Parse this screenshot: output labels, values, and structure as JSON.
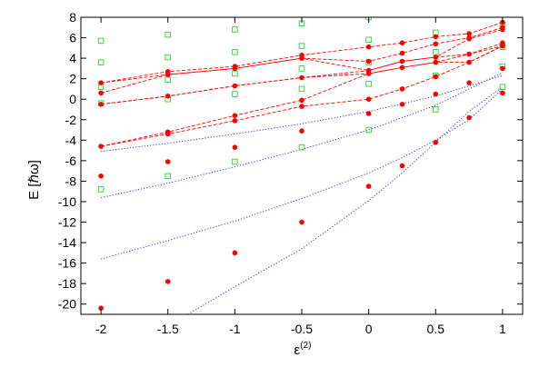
{
  "chart_data": {
    "type": "scatter",
    "xlabel": "ε",
    "xlabel_superscript": "(2)",
    "ylabel": "E [ℏω]",
    "xlim": [
      -2.15,
      1.15
    ],
    "ylim": [
      -21,
      8
    ],
    "xticks": [
      "-2",
      "-1.5",
      "-1",
      "-0.5",
      "0",
      "0.5",
      "1"
    ],
    "yticks": [
      "8",
      "6",
      "4",
      "2",
      "0",
      "-2",
      "-4",
      "-6",
      "-8",
      "-10",
      "-12",
      "-14",
      "-16",
      "-18",
      "-20"
    ],
    "grid": false,
    "legend": "none",
    "colors": {
      "red_points": "#ff0000",
      "green_squares": "#33cc33",
      "red_dashed": "#ff0000",
      "blue_dotted": "#3333ff",
      "axes": "#000000"
    },
    "red_points": [
      {
        "x": -2,
        "y": 1.6
      },
      {
        "x": -2,
        "y": 0.6
      },
      {
        "x": -2,
        "y": -0.5
      },
      {
        "x": -2,
        "y": -4.6
      },
      {
        "x": -2,
        "y": -7.5
      },
      {
        "x": -2,
        "y": -20.4
      },
      {
        "x": -1.5,
        "y": 2.7
      },
      {
        "x": -1.5,
        "y": 2.4
      },
      {
        "x": -1.5,
        "y": 0.3
      },
      {
        "x": -1.5,
        "y": -3.2
      },
      {
        "x": -1.5,
        "y": -3.4
      },
      {
        "x": -1.5,
        "y": -6.1
      },
      {
        "x": -1.5,
        "y": -17.8
      },
      {
        "x": -1,
        "y": 3.2
      },
      {
        "x": -1,
        "y": 3.0
      },
      {
        "x": -1,
        "y": 1.3
      },
      {
        "x": -1,
        "y": -1.6
      },
      {
        "x": -1,
        "y": -2.1
      },
      {
        "x": -1,
        "y": -4.7
      },
      {
        "x": -1,
        "y": -15.0
      },
      {
        "x": -0.5,
        "y": 4.3
      },
      {
        "x": -0.5,
        "y": 4.0
      },
      {
        "x": -0.5,
        "y": 2.1
      },
      {
        "x": -0.5,
        "y": -0.1
      },
      {
        "x": -0.5,
        "y": -0.7
      },
      {
        "x": -0.5,
        "y": -3.1
      },
      {
        "x": -0.5,
        "y": -12.0
      },
      {
        "x": 0,
        "y": 5.1
      },
      {
        "x": 0,
        "y": 3.7
      },
      {
        "x": 0,
        "y": 2.8
      },
      {
        "x": 0,
        "y": 2.5
      },
      {
        "x": 0,
        "y": 0.0
      },
      {
        "x": 0,
        "y": -1.4
      },
      {
        "x": 0,
        "y": -8.5
      },
      {
        "x": 0.25,
        "y": 5.5
      },
      {
        "x": 0.25,
        "y": 4.5
      },
      {
        "x": 0.25,
        "y": 3.7
      },
      {
        "x": 0.25,
        "y": 3.1
      },
      {
        "x": 0.25,
        "y": 1.0
      },
      {
        "x": 0.25,
        "y": -0.5
      },
      {
        "x": 0.25,
        "y": -6.5
      },
      {
        "x": 0.5,
        "y": 6.1
      },
      {
        "x": 0.5,
        "y": 5.4
      },
      {
        "x": 0.5,
        "y": 4.1
      },
      {
        "x": 0.5,
        "y": 3.6
      },
      {
        "x": 0.5,
        "y": 2.2
      },
      {
        "x": 0.5,
        "y": 0.5
      },
      {
        "x": 0.5,
        "y": -4.2
      },
      {
        "x": 0.75,
        "y": 6.4
      },
      {
        "x": 0.75,
        "y": 6.0
      },
      {
        "x": 0.75,
        "y": 5.9
      },
      {
        "x": 0.75,
        "y": 4.4
      },
      {
        "x": 0.75,
        "y": 3.6
      },
      {
        "x": 0.75,
        "y": 1.6
      },
      {
        "x": 0.75,
        "y": -1.8
      },
      {
        "x": 1,
        "y": 7.5
      },
      {
        "x": 1,
        "y": 7.0
      },
      {
        "x": 1,
        "y": 6.8
      },
      {
        "x": 1,
        "y": 5.5
      },
      {
        "x": 1,
        "y": 5.2
      },
      {
        "x": 1,
        "y": 3.0
      },
      {
        "x": 1,
        "y": 0.6
      }
    ],
    "green_squares": [
      {
        "x": -2,
        "y": 5.7
      },
      {
        "x": -2,
        "y": 3.6
      },
      {
        "x": -2,
        "y": 1.2
      },
      {
        "x": -2,
        "y": -0.4
      },
      {
        "x": -2,
        "y": -8.8
      },
      {
        "x": -1.5,
        "y": 6.3
      },
      {
        "x": -1.5,
        "y": 4.1
      },
      {
        "x": -1.5,
        "y": 1.9
      },
      {
        "x": -1.5,
        "y": 0.0
      },
      {
        "x": -1.5,
        "y": -7.5
      },
      {
        "x": -1,
        "y": 6.8
      },
      {
        "x": -1,
        "y": 4.6
      },
      {
        "x": -1,
        "y": 2.5
      },
      {
        "x": -1,
        "y": 0.5
      },
      {
        "x": -1,
        "y": -6.1
      },
      {
        "x": -0.5,
        "y": 7.4
      },
      {
        "x": -0.5,
        "y": 5.2
      },
      {
        "x": -0.5,
        "y": 3.0
      },
      {
        "x": -0.5,
        "y": 1.0
      },
      {
        "x": -0.5,
        "y": -4.7
      },
      {
        "x": 0,
        "y": 8.0
      },
      {
        "x": 0,
        "y": 5.8
      },
      {
        "x": 0,
        "y": 3.6
      },
      {
        "x": 0,
        "y": 1.5
      },
      {
        "x": 0,
        "y": -3.0
      },
      {
        "x": 0.5,
        "y": 6.5
      },
      {
        "x": 0.5,
        "y": 4.6
      },
      {
        "x": 0.5,
        "y": 2.3
      },
      {
        "x": 0.5,
        "y": -1.0
      },
      {
        "x": 1,
        "y": 7.3
      },
      {
        "x": 1,
        "y": 5.1
      },
      {
        "x": 1,
        "y": 3.2
      },
      {
        "x": 1,
        "y": 1.2
      }
    ],
    "red_dashed_lines": [
      [
        [
          -2,
          1.6
        ],
        [
          -1.5,
          2.7
        ],
        [
          -1,
          3.2
        ],
        [
          -0.5,
          4.3
        ],
        [
          0,
          5.1
        ],
        [
          0.25,
          5.5
        ],
        [
          0.5,
          6.1
        ],
        [
          0.75,
          6.4
        ],
        [
          1,
          7.5
        ]
      ],
      [
        [
          -2,
          1.6
        ],
        [
          -1.5,
          2.4
        ],
        [
          -1,
          3.0
        ],
        [
          -0.5,
          4.0
        ],
        [
          0,
          3.7
        ],
        [
          0.25,
          4.5
        ],
        [
          0.5,
          5.4
        ],
        [
          0.75,
          6.0
        ],
        [
          1,
          7.0
        ]
      ],
      [
        [
          -2,
          0.6
        ],
        [
          -1.5,
          2.4
        ],
        [
          -1,
          3.0
        ],
        [
          -0.5,
          4.0
        ],
        [
          0,
          2.8
        ],
        [
          0.25,
          3.7
        ],
        [
          0.5,
          4.1
        ],
        [
          0.75,
          5.9
        ],
        [
          1,
          6.8
        ]
      ],
      [
        [
          -2,
          -0.5
        ],
        [
          -1.5,
          0.3
        ],
        [
          -1,
          1.3
        ],
        [
          -0.5,
          2.1
        ],
        [
          0,
          2.5
        ],
        [
          0.25,
          3.1
        ],
        [
          0.5,
          3.6
        ],
        [
          0.75,
          4.4
        ],
        [
          1,
          5.5
        ]
      ],
      [
        [
          -2,
          -0.5
        ],
        [
          -1.5,
          0.3
        ],
        [
          -1,
          1.3
        ],
        [
          -0.5,
          2.1
        ],
        [
          0,
          2.8
        ],
        [
          0.25,
          3.7
        ],
        [
          0.5,
          4.1
        ],
        [
          0.75,
          4.4
        ],
        [
          1,
          5.2
        ]
      ],
      [
        [
          -2,
          -4.6
        ],
        [
          -1.5,
          -3.2
        ],
        [
          -1,
          -1.6
        ],
        [
          -0.5,
          -0.1
        ],
        [
          0,
          2.5
        ],
        [
          0.25,
          3.1
        ],
        [
          0.5,
          3.6
        ],
        [
          0.75,
          3.6
        ],
        [
          1,
          5.2
        ]
      ],
      [
        [
          -2,
          -4.6
        ],
        [
          -1.5,
          -3.4
        ],
        [
          -1,
          -2.1
        ],
        [
          -0.5,
          -0.7
        ],
        [
          0,
          0.0
        ],
        [
          0.25,
          1.0
        ],
        [
          0.5,
          2.2
        ],
        [
          0.75,
          3.6
        ],
        [
          1,
          5.2
        ]
      ]
    ],
    "blue_dotted_curves": [
      [
        [
          -2,
          -5.1
        ],
        [
          -1.5,
          -4.3
        ],
        [
          -1,
          -3.4
        ],
        [
          -0.5,
          -2.4
        ],
        [
          0,
          -1.2
        ],
        [
          0.5,
          0.3
        ],
        [
          1,
          2.3
        ]
      ],
      [
        [
          -2,
          -9.6
        ],
        [
          -1.5,
          -8.2
        ],
        [
          -1,
          -6.6
        ],
        [
          -0.5,
          -4.9
        ],
        [
          0,
          -3.0
        ],
        [
          0.5,
          -0.6
        ],
        [
          1,
          2.6
        ]
      ],
      [
        [
          -2,
          -15.6
        ],
        [
          -1.5,
          -13.8
        ],
        [
          -1,
          -11.9
        ],
        [
          -0.5,
          -9.7
        ],
        [
          0,
          -7.2
        ],
        [
          0.25,
          -5.7
        ],
        [
          0.5,
          -4.0
        ],
        [
          0.75,
          -2.0
        ],
        [
          1,
          1.0
        ]
      ],
      [
        [
          -1.35,
          -21.0
        ],
        [
          -1,
          -18.3
        ],
        [
          -0.5,
          -14.6
        ],
        [
          0,
          -9.9
        ],
        [
          0.25,
          -7.2
        ],
        [
          0.5,
          -4.2
        ],
        [
          0.75,
          -1.2
        ],
        [
          1,
          1.2
        ]
      ]
    ]
  }
}
